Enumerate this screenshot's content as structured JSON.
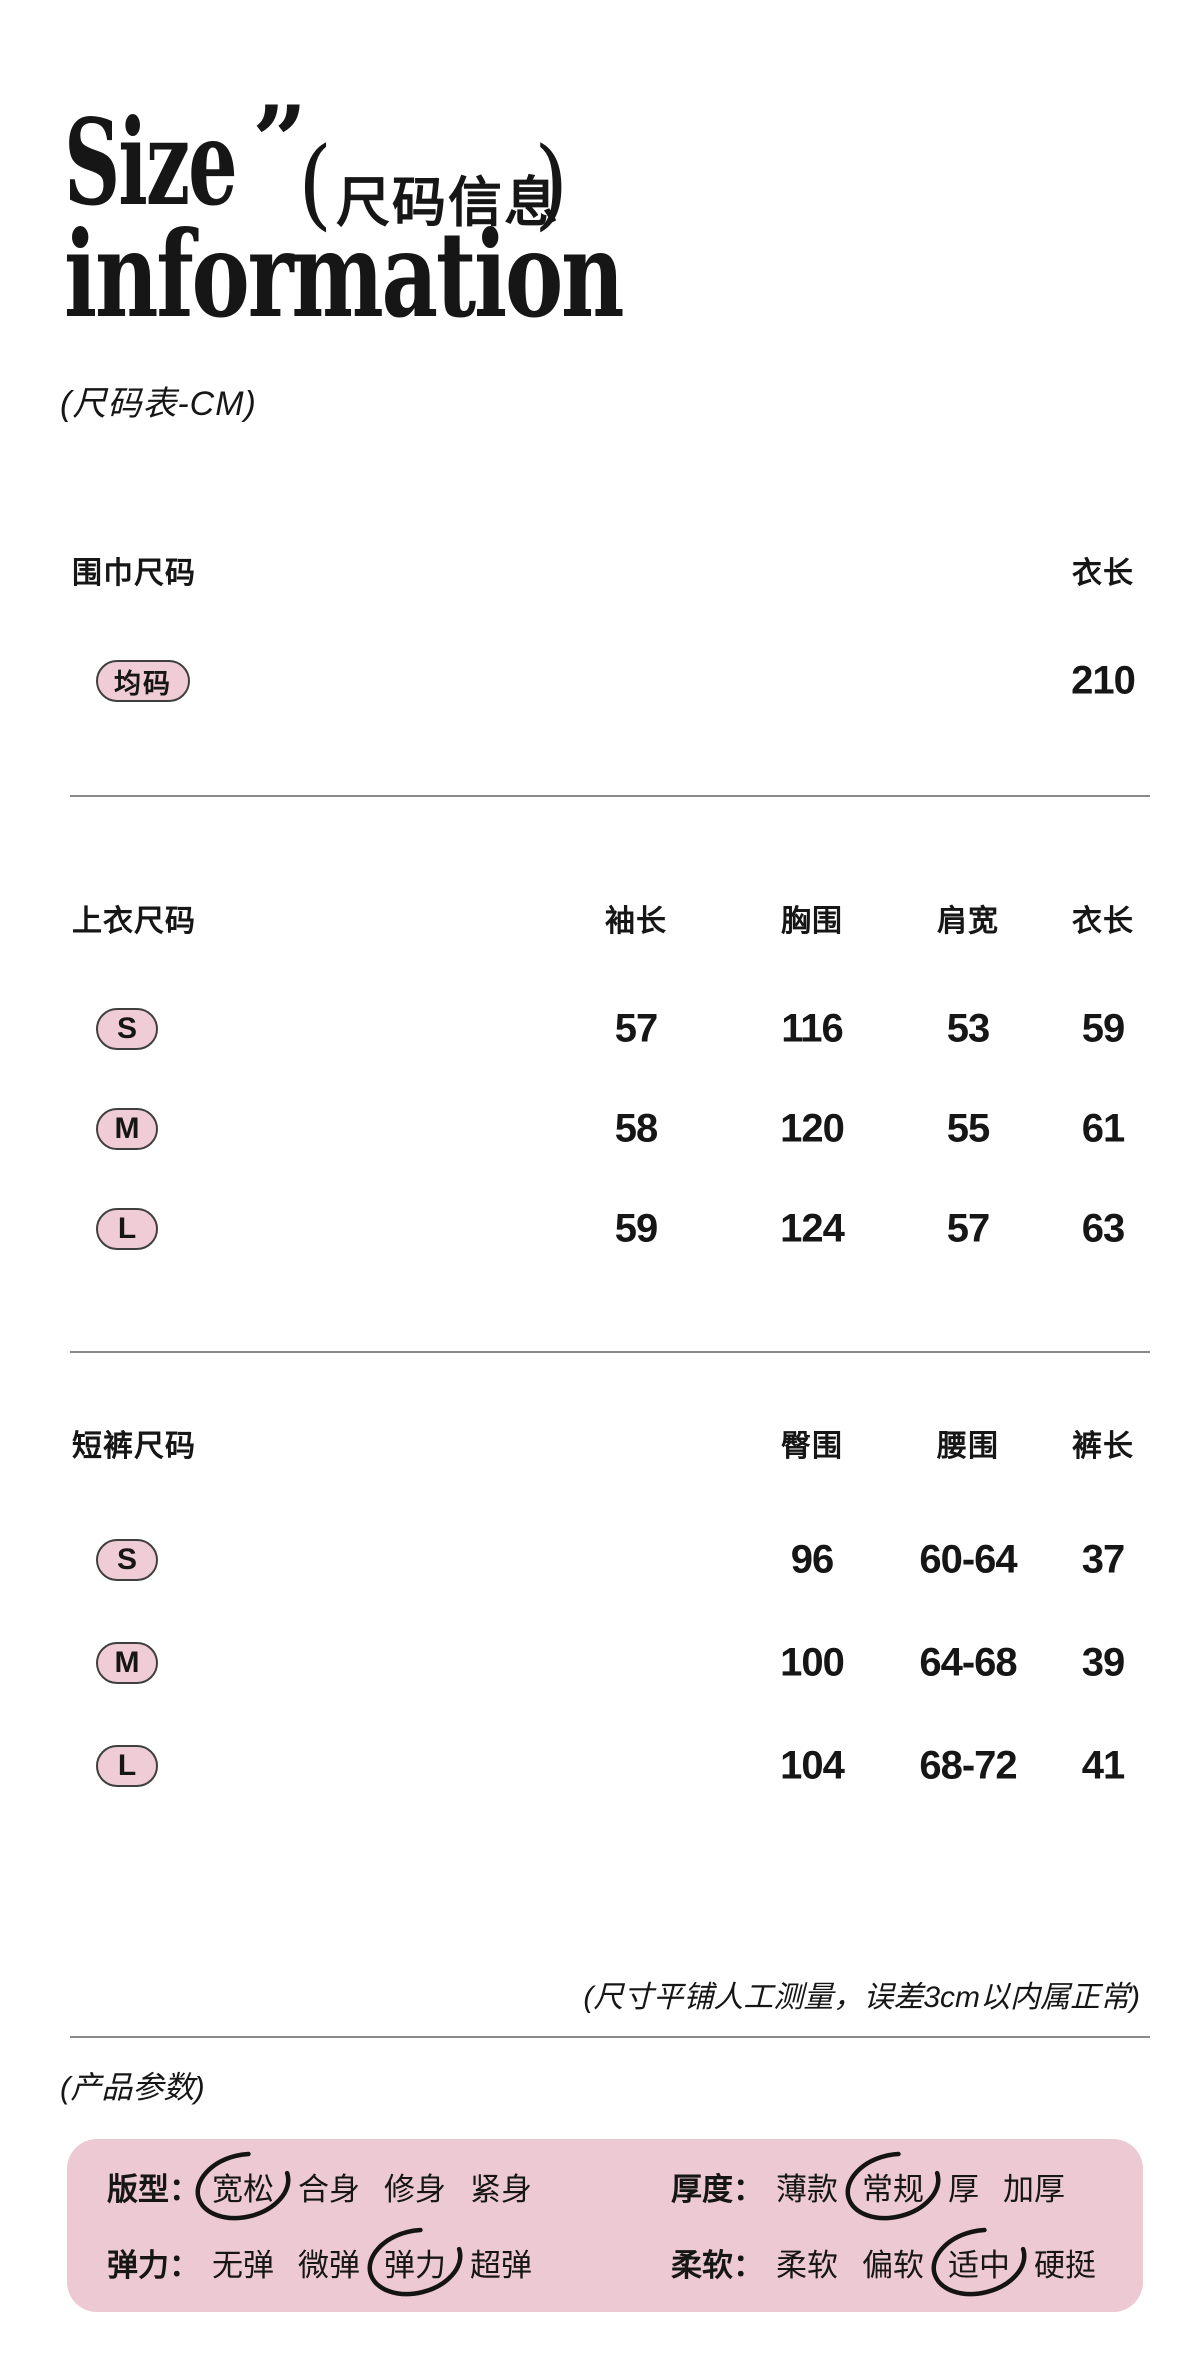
{
  "colors": {
    "accent_pink": "#f0cdd6",
    "panel_pink": "#ecc9d3",
    "text": "#161616",
    "divider": "#8a8a8a"
  },
  "title": {
    "en_line1": "Size",
    "quote_mark": "”",
    "cn_open": "(",
    "cn_text": "尺码信息",
    "cn_close": ")",
    "en_line2": "information"
  },
  "subtitle": "(尺码表-CM)",
  "tables": [
    {
      "label": "围巾尺码",
      "columns": [
        "衣长"
      ],
      "rows": [
        {
          "size": "均码",
          "values": [
            "210"
          ]
        }
      ]
    },
    {
      "label": "上衣尺码",
      "columns": [
        "袖长",
        "胸围",
        "肩宽",
        "衣长"
      ],
      "rows": [
        {
          "size": "S",
          "values": [
            "57",
            "116",
            "53",
            "59"
          ]
        },
        {
          "size": "M",
          "values": [
            "58",
            "120",
            "55",
            "61"
          ]
        },
        {
          "size": "L",
          "values": [
            "59",
            "124",
            "57",
            "63"
          ]
        }
      ]
    },
    {
      "label": "短裤尺码",
      "columns": [
        "臀围",
        "腰围",
        "裤长"
      ],
      "rows": [
        {
          "size": "S",
          "values": [
            "96",
            "60-64",
            "37"
          ]
        },
        {
          "size": "M",
          "values": [
            "100",
            "64-68",
            "39"
          ]
        },
        {
          "size": "L",
          "values": [
            "104",
            "68-72",
            "41"
          ]
        }
      ]
    }
  ],
  "measurement_note": "(尺寸平铺人工测量，误差3cm以内属正常)",
  "params_header": "(产品参数)",
  "product_params": {
    "colon": "：",
    "rows": [
      [
        {
          "label": "版型",
          "options": [
            "宽松",
            "合身",
            "修身",
            "紧身"
          ],
          "selected": 0
        },
        {
          "label": "厚度",
          "options": [
            "薄款",
            "常规",
            "厚",
            "加厚"
          ],
          "selected": 1
        }
      ],
      [
        {
          "label": "弹力",
          "options": [
            "无弹",
            "微弹",
            "弹力",
            "超弹"
          ],
          "selected": 2
        },
        {
          "label": "柔软",
          "options": [
            "柔软",
            "偏软",
            "适中",
            "硬挺"
          ],
          "selected": 2
        }
      ]
    ]
  }
}
